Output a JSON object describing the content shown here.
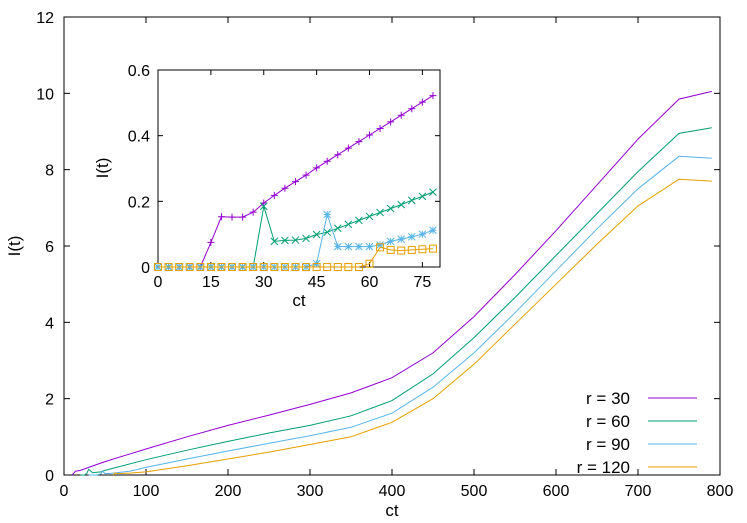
{
  "chart_data": [
    {
      "type": "line",
      "xlabel": "ct",
      "ylabel": "I(t)",
      "xlim": [
        0,
        800
      ],
      "ylim": [
        0,
        12
      ],
      "xticks": [
        0,
        100,
        200,
        300,
        400,
        500,
        600,
        700,
        800
      ],
      "yticks": [
        0,
        2,
        4,
        6,
        8,
        10,
        12
      ],
      "grid": false,
      "legend_position": "bottom-right",
      "series": [
        {
          "name": "r = 30",
          "color": "#9400d3",
          "x": [
            10,
            14,
            20,
            30,
            50,
            100,
            150,
            200,
            250,
            300,
            350,
            400,
            450,
            500,
            550,
            600,
            650,
            700,
            750,
            790
          ],
          "y": [
            0,
            0.1,
            0.12,
            0.2,
            0.35,
            0.68,
            1.0,
            1.3,
            1.57,
            1.85,
            2.15,
            2.55,
            3.2,
            4.15,
            5.25,
            6.4,
            7.6,
            8.8,
            9.85,
            10.05
          ]
        },
        {
          "name": "r = 60",
          "color": "#009e73",
          "x": [
            20,
            25,
            28,
            30,
            35,
            40,
            45,
            50,
            100,
            150,
            200,
            250,
            300,
            350,
            400,
            450,
            500,
            550,
            600,
            650,
            700,
            750,
            790
          ],
          "y": [
            0,
            0,
            0.05,
            0.15,
            0.06,
            0.07,
            0.08,
            0.12,
            0.4,
            0.65,
            0.88,
            1.1,
            1.3,
            1.55,
            1.95,
            2.65,
            3.6,
            4.65,
            5.75,
            6.85,
            7.95,
            8.95,
            9.1
          ]
        },
        {
          "name": "r = 90",
          "color": "#56b4e9",
          "x": [
            30,
            40,
            45,
            47,
            50,
            55,
            60,
            80,
            100,
            150,
            200,
            250,
            300,
            350,
            400,
            450,
            500,
            550,
            600,
            650,
            700,
            750,
            790
          ],
          "y": [
            0,
            0,
            0.03,
            0.1,
            0.04,
            0.04,
            0.05,
            0.1,
            0.2,
            0.42,
            0.63,
            0.83,
            1.03,
            1.25,
            1.62,
            2.3,
            3.2,
            4.25,
            5.35,
            6.45,
            7.5,
            8.35,
            8.3
          ]
        },
        {
          "name": "r = 120",
          "color": "#e69f00",
          "x": [
            60,
            62,
            65,
            70,
            80,
            100,
            150,
            200,
            250,
            300,
            350,
            400,
            450,
            500,
            550,
            600,
            650,
            700,
            750,
            790
          ],
          "y": [
            0,
            0.05,
            0.04,
            0.04,
            0.05,
            0.08,
            0.24,
            0.42,
            0.6,
            0.8,
            1.0,
            1.38,
            2.0,
            2.9,
            3.95,
            5.0,
            6.05,
            7.05,
            7.75,
            7.7
          ]
        }
      ]
    },
    {
      "type": "line",
      "inset": true,
      "xlabel": "ct",
      "ylabel": "I(t)",
      "xlim": [
        0,
        80
      ],
      "ylim": [
        0,
        0.6
      ],
      "xticks": [
        0,
        15,
        30,
        45,
        60,
        75
      ],
      "yticks": [
        0,
        0.2,
        0.4,
        0.6
      ],
      "ytick_labels": [
        "0",
        "0.2",
        "0.4",
        "0.6"
      ],
      "grid": false,
      "series": [
        {
          "name": "r = 30",
          "color": "#9400d3",
          "marker": "plus",
          "x": [
            0,
            3,
            6,
            9,
            12,
            15,
            18,
            21,
            24,
            27,
            30,
            33,
            36,
            39,
            42,
            45,
            48,
            51,
            54,
            57,
            60,
            63,
            66,
            69,
            72,
            75,
            78
          ],
          "y": [
            0,
            0,
            0,
            0,
            0,
            0.075,
            0.153,
            0.152,
            0.152,
            0.167,
            0.195,
            0.218,
            0.24,
            0.26,
            0.28,
            0.302,
            0.322,
            0.342,
            0.362,
            0.382,
            0.402,
            0.422,
            0.442,
            0.462,
            0.482,
            0.502,
            0.522
          ]
        },
        {
          "name": "r = 60",
          "color": "#009e73",
          "marker": "cross",
          "x": [
            0,
            3,
            6,
            9,
            12,
            15,
            18,
            21,
            24,
            27,
            30,
            33,
            36,
            39,
            42,
            45,
            48,
            51,
            54,
            57,
            60,
            63,
            66,
            69,
            72,
            75,
            78
          ],
          "y": [
            0,
            0,
            0,
            0,
            0,
            0,
            0,
            0,
            0,
            0,
            0.185,
            0.078,
            0.081,
            0.082,
            0.087,
            0.099,
            0.106,
            0.118,
            0.13,
            0.142,
            0.154,
            0.166,
            0.178,
            0.19,
            0.203,
            0.215,
            0.228
          ]
        },
        {
          "name": "r = 90",
          "color": "#56b4e9",
          "marker": "star",
          "x": [
            0,
            3,
            6,
            9,
            12,
            15,
            18,
            21,
            24,
            27,
            30,
            33,
            36,
            39,
            42,
            45,
            48,
            51,
            54,
            57,
            60,
            63,
            66,
            69,
            72,
            75,
            78
          ],
          "y": [
            0,
            0,
            0,
            0,
            0,
            0,
            0,
            0,
            0,
            0,
            0,
            0,
            0,
            0,
            0,
            0.01,
            0.16,
            0.062,
            0.062,
            0.062,
            0.062,
            0.067,
            0.078,
            0.085,
            0.092,
            0.1,
            0.112
          ]
        },
        {
          "name": "r = 120",
          "color": "#e69f00",
          "marker": "square",
          "x": [
            0,
            3,
            6,
            9,
            12,
            15,
            18,
            21,
            24,
            27,
            30,
            33,
            36,
            39,
            42,
            45,
            48,
            51,
            54,
            57,
            60,
            63,
            66,
            69,
            72,
            75,
            78
          ],
          "y": [
            0,
            0,
            0,
            0,
            0,
            0,
            0,
            0,
            0,
            0,
            0,
            0,
            0,
            0,
            0,
            0,
            0,
            0,
            0,
            0,
            0.01,
            0.06,
            0.052,
            0.05,
            0.052,
            0.054,
            0.056
          ]
        }
      ]
    }
  ]
}
